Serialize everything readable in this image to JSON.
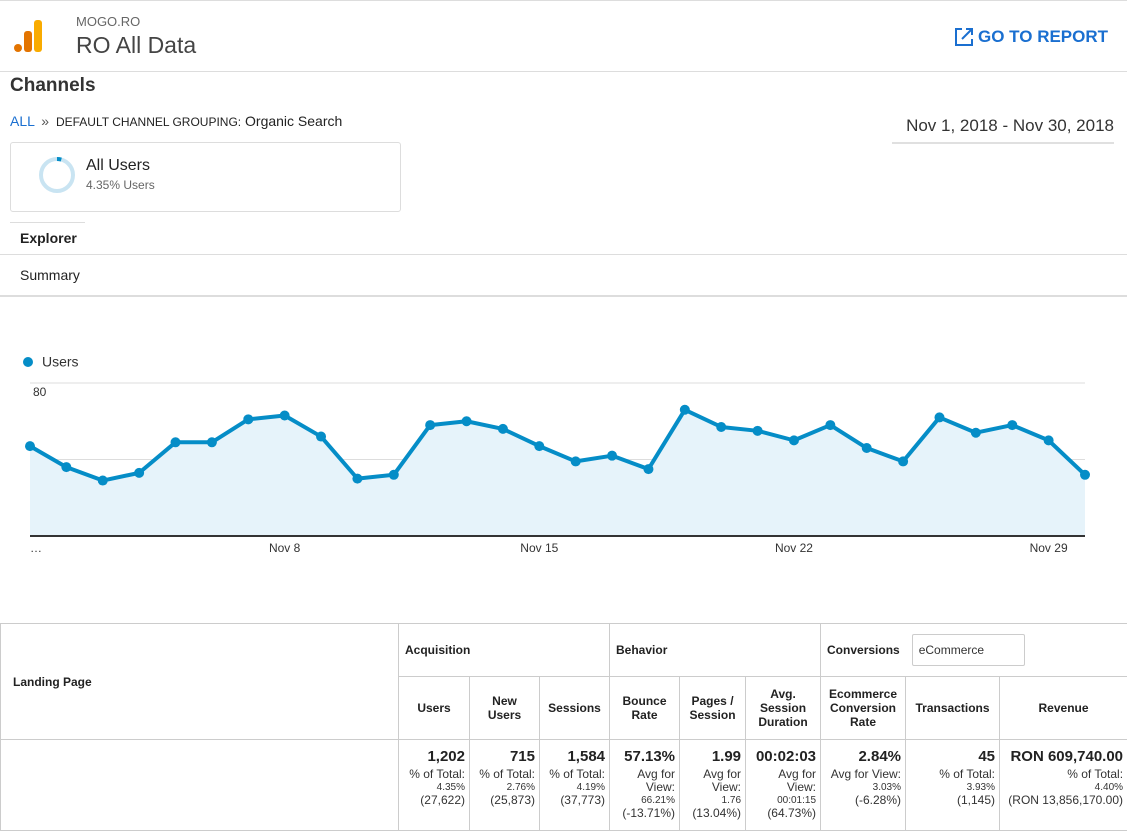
{
  "header": {
    "property": "MOGO.RO",
    "view": "RO All Data",
    "action": "GO TO REPORT"
  },
  "report": {
    "title": "Channels",
    "breadcrumb": {
      "all": "ALL",
      "separator": "»",
      "dimension": "DEFAULT CHANNEL GROUPING:",
      "value": "Organic Search"
    },
    "date_range": "Nov 1, 2018 - Nov 30, 2018"
  },
  "segment": {
    "name": "All Users",
    "detail": "4.35% Users"
  },
  "tabs": [
    "Explorer",
    "Summary"
  ],
  "chart_data": {
    "type": "line",
    "categories": [
      "…",
      null,
      null,
      null,
      null,
      null,
      null,
      "Nov 8",
      null,
      null,
      null,
      null,
      null,
      null,
      "Nov 15",
      null,
      null,
      null,
      null,
      null,
      null,
      "Nov 22",
      null,
      null,
      null,
      null,
      null,
      null,
      "Nov 29",
      null
    ],
    "series": [
      {
        "name": "Users",
        "color": "#058dc7",
        "values": [
          47,
          36,
          29,
          33,
          49,
          49,
          61,
          63,
          52,
          30,
          32,
          58,
          60,
          56,
          47,
          39,
          42,
          35,
          66,
          57,
          55,
          50,
          58,
          46,
          39,
          62,
          54,
          58,
          50,
          32
        ]
      }
    ],
    "ylim": [
      0,
      80
    ],
    "yticks": [
      40,
      80
    ],
    "grid": true
  },
  "table": {
    "dimension": "Landing Page",
    "groups": [
      "Acquisition",
      "Behavior",
      "Conversions"
    ],
    "conversion_type": "eCommerce",
    "columns": [
      "Users",
      "New Users",
      "Sessions",
      "Bounce Rate",
      "Pages / Session",
      "Avg. Session Duration",
      "Ecommerce Conversion Rate",
      "Transactions",
      "Revenue"
    ],
    "totals": [
      [
        "1,202",
        "% of Total:",
        "4.35%",
        "(27,622)"
      ],
      [
        "715",
        "% of Total:",
        "2.76%",
        "(25,873)"
      ],
      [
        "1,584",
        "% of Total:",
        "4.19%",
        "(37,773)"
      ],
      [
        "57.13%",
        "Avg for View:",
        "66.21%",
        "(-13.71%)"
      ],
      [
        "1.99",
        "Avg for View:",
        "1.76",
        "(13.04%)"
      ],
      [
        "00:02:03",
        "Avg for View:",
        "00:01:15",
        "(64.73%)"
      ],
      [
        "2.84%",
        "Avg for View:",
        "3.03%",
        "(-6.28%)"
      ],
      [
        "45",
        "% of Total:",
        "3.93%",
        "(1,145)"
      ],
      [
        "RON 609,740.00",
        "% of Total:",
        "4.40%",
        "(RON 13,856,170.00)"
      ]
    ]
  }
}
